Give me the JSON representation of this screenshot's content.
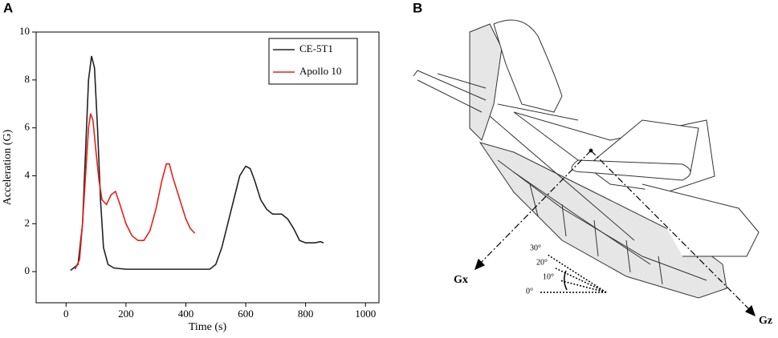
{
  "chart_data": {
    "type": "line",
    "panel_label": "A",
    "xlabel": "Time (s)",
    "ylabel": "Acceleration (G)",
    "xlim": [
      -100,
      1045
    ],
    "ylim": [
      -1.3,
      10
    ],
    "xticks": [
      0,
      200,
      400,
      600,
      800,
      1000
    ],
    "yticks": [
      0,
      2,
      4,
      6,
      8,
      10
    ],
    "legend": "upper right",
    "series": [
      {
        "name": "CE-5T1",
        "color": "#222222",
        "x": [
          15,
          40,
          55,
          65,
          75,
          85,
          95,
          105,
          115,
          125,
          140,
          160,
          200,
          300,
          400,
          480,
          500,
          520,
          540,
          560,
          580,
          600,
          615,
          630,
          650,
          670,
          690,
          720,
          740,
          760,
          780,
          800,
          830,
          850,
          860
        ],
        "values": [
          0.05,
          0.3,
          2,
          5,
          8,
          9,
          8.5,
          6,
          3,
          1,
          0.3,
          0.15,
          0.1,
          0.1,
          0.1,
          0.1,
          0.3,
          1,
          2,
          3,
          4,
          4.4,
          4.3,
          3.8,
          3,
          2.6,
          2.4,
          2.4,
          2.2,
          1.8,
          1.3,
          1.2,
          1.2,
          1.25,
          1.2
        ]
      },
      {
        "name": "Apollo 10",
        "color": "#e8201c",
        "x": [
          30,
          45,
          55,
          65,
          75,
          82,
          90,
          100,
          110,
          120,
          135,
          150,
          165,
          180,
          200,
          220,
          240,
          260,
          280,
          300,
          320,
          335,
          345,
          355,
          370,
          385,
          400,
          415,
          430
        ],
        "values": [
          0.1,
          0.5,
          2,
          4,
          6,
          6.6,
          6.3,
          5,
          3.8,
          3,
          2.8,
          3.2,
          3.35,
          2.8,
          2,
          1.5,
          1.3,
          1.3,
          1.7,
          2.6,
          3.8,
          4.5,
          4.5,
          4,
          3.4,
          2.8,
          2.2,
          1.8,
          1.6
        ]
      }
    ]
  },
  "diagram": {
    "panel_label": "B",
    "axes": [
      "Gx",
      "Gz"
    ],
    "angles": [
      "30°",
      "20°",
      "10°",
      "0°"
    ]
  }
}
